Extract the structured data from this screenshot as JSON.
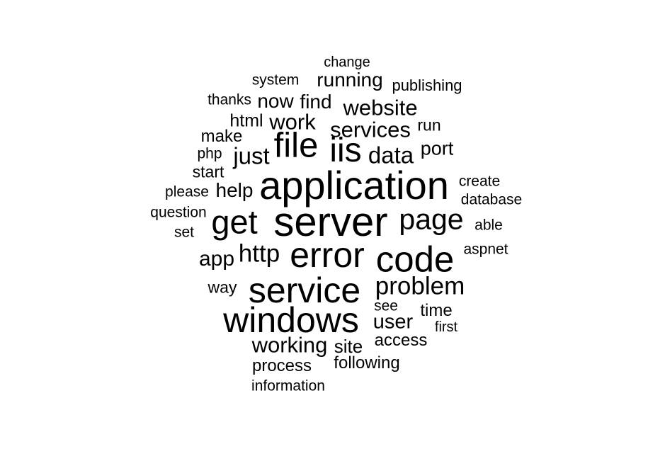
{
  "words": [
    {
      "text": "change",
      "weight": 20
    },
    {
      "text": "system",
      "weight": 21
    },
    {
      "text": "running",
      "weight": 28
    },
    {
      "text": "publishing",
      "weight": 22
    },
    {
      "text": "thanks",
      "weight": 21
    },
    {
      "text": "now",
      "weight": 28
    },
    {
      "text": "find",
      "weight": 28
    },
    {
      "text": "website",
      "weight": 31
    },
    {
      "text": "html",
      "weight": 25
    },
    {
      "text": "work",
      "weight": 31
    },
    {
      "text": "services",
      "weight": 31
    },
    {
      "text": "run",
      "weight": 23
    },
    {
      "text": "make",
      "weight": 24
    },
    {
      "text": "file",
      "weight": 49
    },
    {
      "text": "iis",
      "weight": 48
    },
    {
      "text": "php",
      "weight": 21
    },
    {
      "text": "just",
      "weight": 33
    },
    {
      "text": "data",
      "weight": 33
    },
    {
      "text": "port",
      "weight": 27
    },
    {
      "text": "start",
      "weight": 23
    },
    {
      "text": "application",
      "weight": 56
    },
    {
      "text": "create",
      "weight": 21
    },
    {
      "text": "please",
      "weight": 21
    },
    {
      "text": "help",
      "weight": 28
    },
    {
      "text": "database",
      "weight": 21
    },
    {
      "text": "question",
      "weight": 21
    },
    {
      "text": "get",
      "weight": 47
    },
    {
      "text": "server",
      "weight": 58
    },
    {
      "text": "page",
      "weight": 41
    },
    {
      "text": "set",
      "weight": 21
    },
    {
      "text": "able",
      "weight": 21
    },
    {
      "text": "app",
      "weight": 30
    },
    {
      "text": "http",
      "weight": 35
    },
    {
      "text": "error",
      "weight": 50
    },
    {
      "text": "code",
      "weight": 51
    },
    {
      "text": "aspnet",
      "weight": 21
    },
    {
      "text": "way",
      "weight": 23
    },
    {
      "text": "service",
      "weight": 50
    },
    {
      "text": "problem",
      "weight": 35
    },
    {
      "text": "see",
      "weight": 21
    },
    {
      "text": "time",
      "weight": 24
    },
    {
      "text": "windows",
      "weight": 50
    },
    {
      "text": "user",
      "weight": 29
    },
    {
      "text": "first",
      "weight": 20
    },
    {
      "text": "working",
      "weight": 31
    },
    {
      "text": "site",
      "weight": 26
    },
    {
      "text": "access",
      "weight": 24
    },
    {
      "text": "following",
      "weight": 24
    },
    {
      "text": "process",
      "weight": 24
    },
    {
      "text": "information",
      "weight": 21
    }
  ],
  "colors": {
    "background": "#ffffff",
    "text": "#000000"
  }
}
